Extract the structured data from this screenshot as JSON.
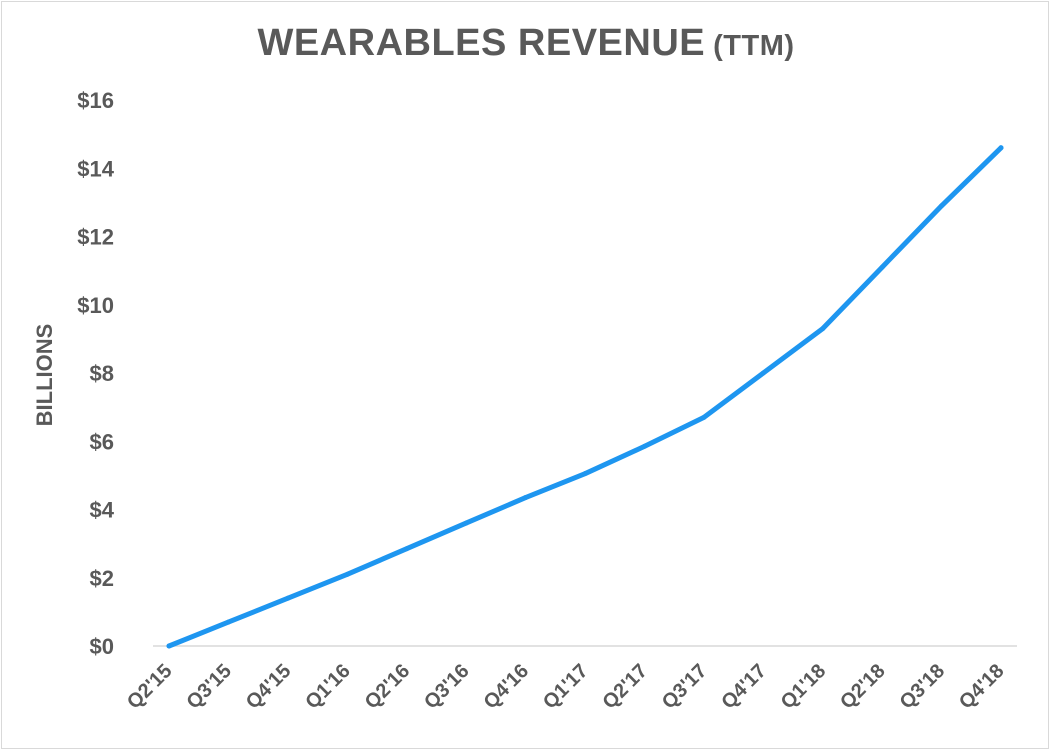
{
  "chart_data": {
    "type": "line",
    "title": "WEARABLES REVENUE",
    "subtitle": "(TTM)",
    "xlabel": "",
    "ylabel": "BILLIONS",
    "ylim": [
      0,
      16
    ],
    "y_ticks": [
      "$0",
      "$2",
      "$4",
      "$6",
      "$8",
      "$10",
      "$12",
      "$14",
      "$16"
    ],
    "y_tick_values": [
      0,
      2,
      4,
      6,
      8,
      10,
      12,
      14,
      16
    ],
    "categories": [
      "Q2'15",
      "Q3'15",
      "Q4'15",
      "Q1'16",
      "Q2'16",
      "Q3'16",
      "Q4'16",
      "Q1'17",
      "Q2'17",
      "Q3'17",
      "Q4'17",
      "Q1'18",
      "Q2'18",
      "Q3'18",
      "Q4'18"
    ],
    "series": [
      {
        "values": [
          0,
          0.7,
          1.4,
          2.1,
          2.85,
          3.6,
          4.35,
          5.05,
          5.85,
          6.7,
          8.0,
          9.3,
          11.1,
          12.9,
          14.6
        ],
        "color": "#1e96f0"
      }
    ],
    "grid": false,
    "legend": "none",
    "x_tick_rotation": "-45deg"
  }
}
